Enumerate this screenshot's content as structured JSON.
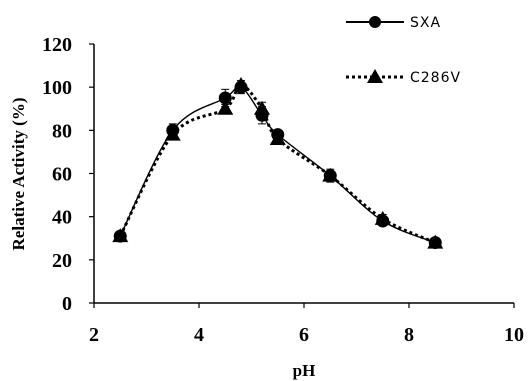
{
  "chart_data": {
    "type": "line",
    "xlabel": "pH",
    "ylabel": "Relative Activity (%)",
    "xlim": [
      2,
      10
    ],
    "ylim": [
      0,
      120
    ],
    "xticks": [
      2,
      4,
      6,
      8,
      10
    ],
    "yticks": [
      0,
      20,
      40,
      60,
      80,
      100,
      120
    ],
    "grid": false,
    "legend_position": "top-right",
    "series": [
      {
        "name": "SXA",
        "marker": "circle",
        "line_style": "solid",
        "color": "#000000",
        "x": [
          2.5,
          3.5,
          4.5,
          4.8,
          5.2,
          5.5,
          6.5,
          7.5,
          8.5
        ],
        "y": [
          31,
          80,
          95,
          100,
          87,
          78,
          59,
          38,
          28
        ],
        "error": [
          2,
          3,
          4,
          3,
          4,
          2,
          3,
          2,
          2
        ]
      },
      {
        "name": "C286V",
        "marker": "triangle",
        "line_style": "dotted",
        "color": "#000000",
        "x": [
          2.5,
          3.5,
          4.5,
          4.8,
          5.2,
          5.5,
          6.5,
          7.5,
          8.5
        ],
        "y": [
          31,
          78,
          90,
          101,
          90,
          76,
          59,
          39,
          28
        ],
        "error": [
          1,
          2,
          2,
          2,
          3,
          2,
          2,
          2,
          1
        ]
      }
    ]
  }
}
